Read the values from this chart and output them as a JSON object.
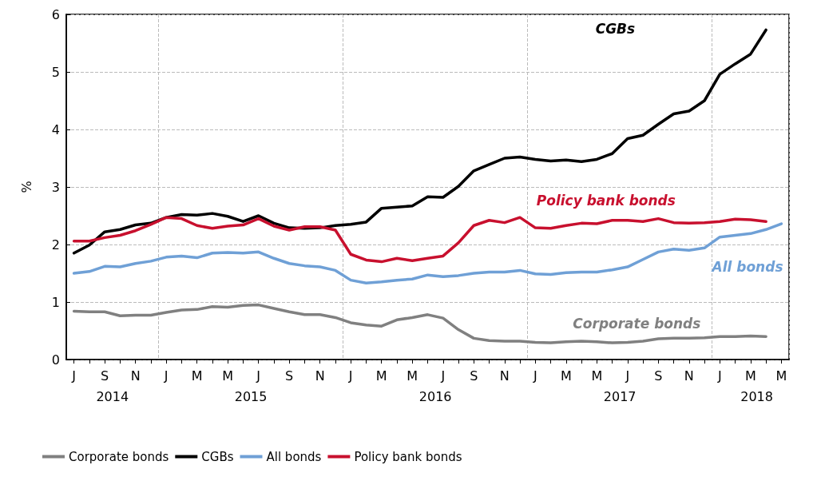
{
  "chart_data": {
    "type": "line",
    "ylabel": "%",
    "categories": [
      "J",
      null,
      "S",
      null,
      "N",
      null,
      "J",
      null,
      "M",
      null,
      "M",
      null,
      "J",
      null,
      "S",
      null,
      "N",
      null,
      "J",
      null,
      "M",
      null,
      "M",
      null,
      "J",
      null,
      "S",
      null,
      "N",
      null,
      "J",
      null,
      "M",
      null,
      "M",
      null,
      "J",
      null,
      "S",
      null,
      "N",
      null,
      "J",
      null,
      "M",
      null,
      "M"
    ],
    "series": [
      {
        "name": "Corporate bonds",
        "color": "#808080",
        "values": [
          0.84,
          0.83,
          0.83,
          0.76,
          0.77,
          0.77,
          0.82,
          0.86,
          0.87,
          0.92,
          0.91,
          0.94,
          0.95,
          0.89,
          0.83,
          0.78,
          0.78,
          0.73,
          0.64,
          0.6,
          0.58,
          0.69,
          0.73,
          0.78,
          0.72,
          0.52,
          0.37,
          0.33,
          0.32,
          0.32,
          0.3,
          0.29,
          0.31,
          0.32,
          0.31,
          0.29,
          0.3,
          0.32,
          0.36,
          0.37,
          0.37,
          0.38,
          0.4,
          0.4,
          0.41,
          0.4,
          null
        ]
      },
      {
        "name": "CGBs",
        "color": "#000000",
        "values": [
          1.85,
          1.99,
          2.22,
          2.26,
          2.34,
          2.37,
          2.47,
          2.52,
          2.51,
          2.54,
          2.49,
          2.4,
          2.5,
          2.37,
          2.29,
          2.28,
          2.29,
          2.33,
          2.35,
          2.39,
          2.63,
          2.65,
          2.67,
          2.83,
          2.82,
          3.01,
          3.28,
          3.39,
          3.5,
          3.52,
          3.48,
          3.45,
          3.47,
          3.44,
          3.48,
          3.58,
          3.84,
          3.9,
          4.09,
          4.27,
          4.32,
          4.5,
          4.96,
          5.14,
          5.31,
          5.73,
          null
        ]
      },
      {
        "name": "All bonds",
        "color": "#6fa0d6",
        "values": [
          1.5,
          1.53,
          1.62,
          1.61,
          1.67,
          1.71,
          1.78,
          1.8,
          1.77,
          1.85,
          1.86,
          1.85,
          1.87,
          1.76,
          1.67,
          1.63,
          1.61,
          1.55,
          1.38,
          1.33,
          1.35,
          1.38,
          1.4,
          1.47,
          1.44,
          1.46,
          1.5,
          1.52,
          1.52,
          1.55,
          1.49,
          1.48,
          1.51,
          1.52,
          1.52,
          1.56,
          1.61,
          1.74,
          1.87,
          1.92,
          1.9,
          1.94,
          2.13,
          2.16,
          2.19,
          2.26,
          2.36
        ]
      },
      {
        "name": "Policy bank bonds",
        "color": "#c8102e",
        "values": [
          2.06,
          2.06,
          2.12,
          2.16,
          2.24,
          2.35,
          2.47,
          2.45,
          2.33,
          2.28,
          2.32,
          2.34,
          2.45,
          2.32,
          2.25,
          2.31,
          2.31,
          2.25,
          1.83,
          1.73,
          1.7,
          1.76,
          1.72,
          1.76,
          1.8,
          2.03,
          2.33,
          2.42,
          2.38,
          2.47,
          2.29,
          2.28,
          2.33,
          2.37,
          2.36,
          2.42,
          2.42,
          2.4,
          2.45,
          2.38,
          2.37,
          2.38,
          2.4,
          2.44,
          2.43,
          2.4,
          null
        ]
      }
    ],
    "annotations": [
      "Corporate bonds",
      "CGBs",
      "All bonds",
      "Policy bank bonds",
      "2014",
      "2015",
      "2016",
      "2017",
      "2018"
    ],
    "ylim": [
      0,
      6
    ],
    "yticks": [
      0,
      1,
      2,
      3,
      4,
      5,
      6
    ],
    "grid": true,
    "legend": "bottom left",
    "marker": "none",
    "line_style": "solid"
  }
}
